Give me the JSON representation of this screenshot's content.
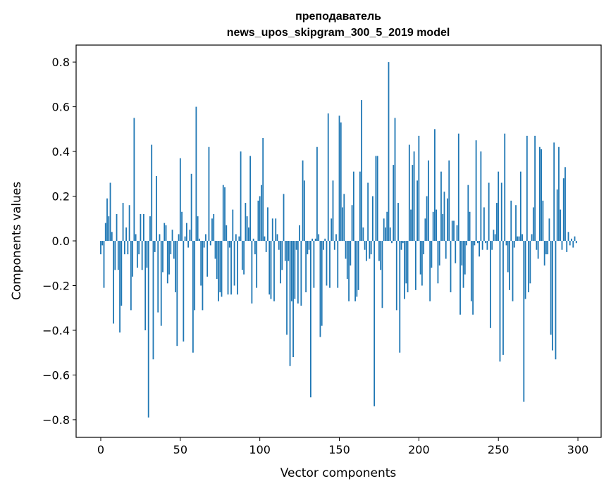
{
  "chart_data": {
    "type": "bar",
    "title": [
      "преподаватель",
      "news_upos_skipgram_300_5_2019 model"
    ],
    "xlabel": "Vector components",
    "ylabel": "Components values",
    "xlim": [
      -15.5,
      314.6
    ],
    "ylim": [
      -0.879,
      0.876
    ],
    "xticks": [
      0,
      50,
      100,
      150,
      200,
      250,
      300
    ],
    "xtick_labels": [
      "0",
      "50",
      "100",
      "150",
      "200",
      "250",
      "300"
    ],
    "yticks": [
      -0.8,
      -0.6,
      -0.4,
      -0.2,
      0.0,
      0.2,
      0.4,
      0.6,
      0.8
    ],
    "ytick_labels": [
      "−0.8",
      "−0.6",
      "−0.4",
      "−0.2",
      "0.0",
      "0.2",
      "0.4",
      "0.6",
      "0.8"
    ],
    "grid": false,
    "bar_color": "#1f77b4",
    "values": [
      -0.06,
      -0.02,
      -0.21,
      0.08,
      0.19,
      0.11,
      0.26,
      0.04,
      -0.37,
      -0.13,
      0.12,
      -0.13,
      -0.41,
      -0.29,
      0.17,
      -0.06,
      0.06,
      -0.06,
      0.16,
      -0.31,
      -0.16,
      0.55,
      0.03,
      -0.12,
      -0.06,
      0.12,
      -0.13,
      0.12,
      -0.4,
      -0.12,
      -0.79,
      0.11,
      0.43,
      -0.53,
      -0.05,
      0.29,
      -0.32,
      0.03,
      -0.38,
      -0.14,
      0.08,
      0.07,
      -0.19,
      -0.15,
      -0.06,
      0.05,
      -0.08,
      -0.23,
      -0.47,
      0.03,
      0.37,
      0.13,
      -0.45,
      0.02,
      0.08,
      -0.03,
      0.05,
      0.3,
      -0.5,
      -0.31,
      0.6,
      0.11,
      0.01,
      -0.2,
      -0.31,
      -0.03,
      0.03,
      -0.16,
      0.42,
      -0.02,
      0.1,
      0.12,
      -0.08,
      -0.17,
      -0.27,
      -0.23,
      -0.25,
      0.25,
      0.24,
      0.07,
      -0.24,
      -0.03,
      -0.24,
      0.14,
      -0.2,
      0.03,
      -0.24,
      0.02,
      0.4,
      -0.13,
      -0.15,
      0.17,
      0.11,
      0.06,
      0.38,
      -0.28,
      0.01,
      -0.06,
      -0.21,
      0.18,
      0.2,
      0.25,
      0.46,
      0.02,
      -0.05,
      0.15,
      -0.24,
      -0.26,
      0.1,
      -0.27,
      0.1,
      0.03,
      -0.04,
      -0.19,
      -0.13,
      0.21,
      -0.09,
      -0.42,
      -0.09,
      -0.56,
      -0.27,
      -0.52,
      -0.26,
      -0.04,
      -0.28,
      0.07,
      -0.29,
      0.36,
      0.27,
      -0.23,
      -0.06,
      -0.04,
      -0.7,
      0.01,
      -0.21,
      0.01,
      0.42,
      0.03,
      -0.43,
      -0.38,
      -0.04,
      0.01,
      -0.2,
      0.57,
      -0.21,
      0.1,
      0.27,
      -0.04,
      0.03,
      -0.21,
      0.56,
      0.53,
      0.15,
      0.21,
      -0.08,
      -0.17,
      -0.27,
      -0.11,
      0.16,
      0.31,
      -0.27,
      -0.25,
      -0.22,
      0.31,
      0.63,
      0.06,
      -0.04,
      -0.09,
      0.26,
      -0.08,
      -0.06,
      0.2,
      -0.74,
      0.38,
      0.38,
      -0.09,
      -0.13,
      -0.3,
      0.1,
      0.06,
      0.13,
      0.8,
      0.06,
      -0.01,
      0.34,
      0.55,
      -0.31,
      0.17,
      -0.5,
      -0.04,
      -0.01,
      -0.26,
      -0.19,
      -0.23,
      0.43,
      0.14,
      0.34,
      0.4,
      -0.22,
      0.27,
      0.47,
      -0.15,
      -0.2,
      -0.06,
      0.1,
      0.2,
      0.36,
      -0.27,
      -0.12,
      0.13,
      0.5,
      0.14,
      -0.19,
      -0.11,
      0.31,
      0.12,
      0.22,
      -0.08,
      0.19,
      0.36,
      -0.23,
      0.09,
      0.09,
      -0.1,
      0.07,
      0.48,
      -0.33,
      -0.11,
      -0.21,
      -0.15,
      -0.02,
      0.25,
      0.13,
      -0.27,
      -0.33,
      -0.02,
      0.45,
      -0.01,
      -0.07,
      0.4,
      -0.04,
      0.15,
      -0.01,
      -0.04,
      0.26,
      -0.39,
      -0.04,
      0.05,
      0.03,
      0.17,
      0.31,
      -0.54,
      0.26,
      -0.51,
      0.48,
      -0.02,
      -0.14,
      -0.22,
      0.18,
      -0.27,
      -0.03,
      0.16,
      0.02,
      0.02,
      0.31,
      0.03,
      -0.72,
      -0.26,
      0.47,
      -0.23,
      -0.19,
      0.03,
      0.15,
      0.47,
      -0.04,
      -0.08,
      0.42,
      0.41,
      0.18,
      -0.11,
      -0.06,
      -0.06,
      0.1,
      -0.42,
      -0.49,
      0.44,
      -0.53,
      0.23,
      0.42,
      0.14,
      -0.04,
      0.28,
      0.33,
      -0.05,
      0.04,
      -0.02,
      0.01,
      -0.03,
      0.02,
      -0.01
    ]
  }
}
